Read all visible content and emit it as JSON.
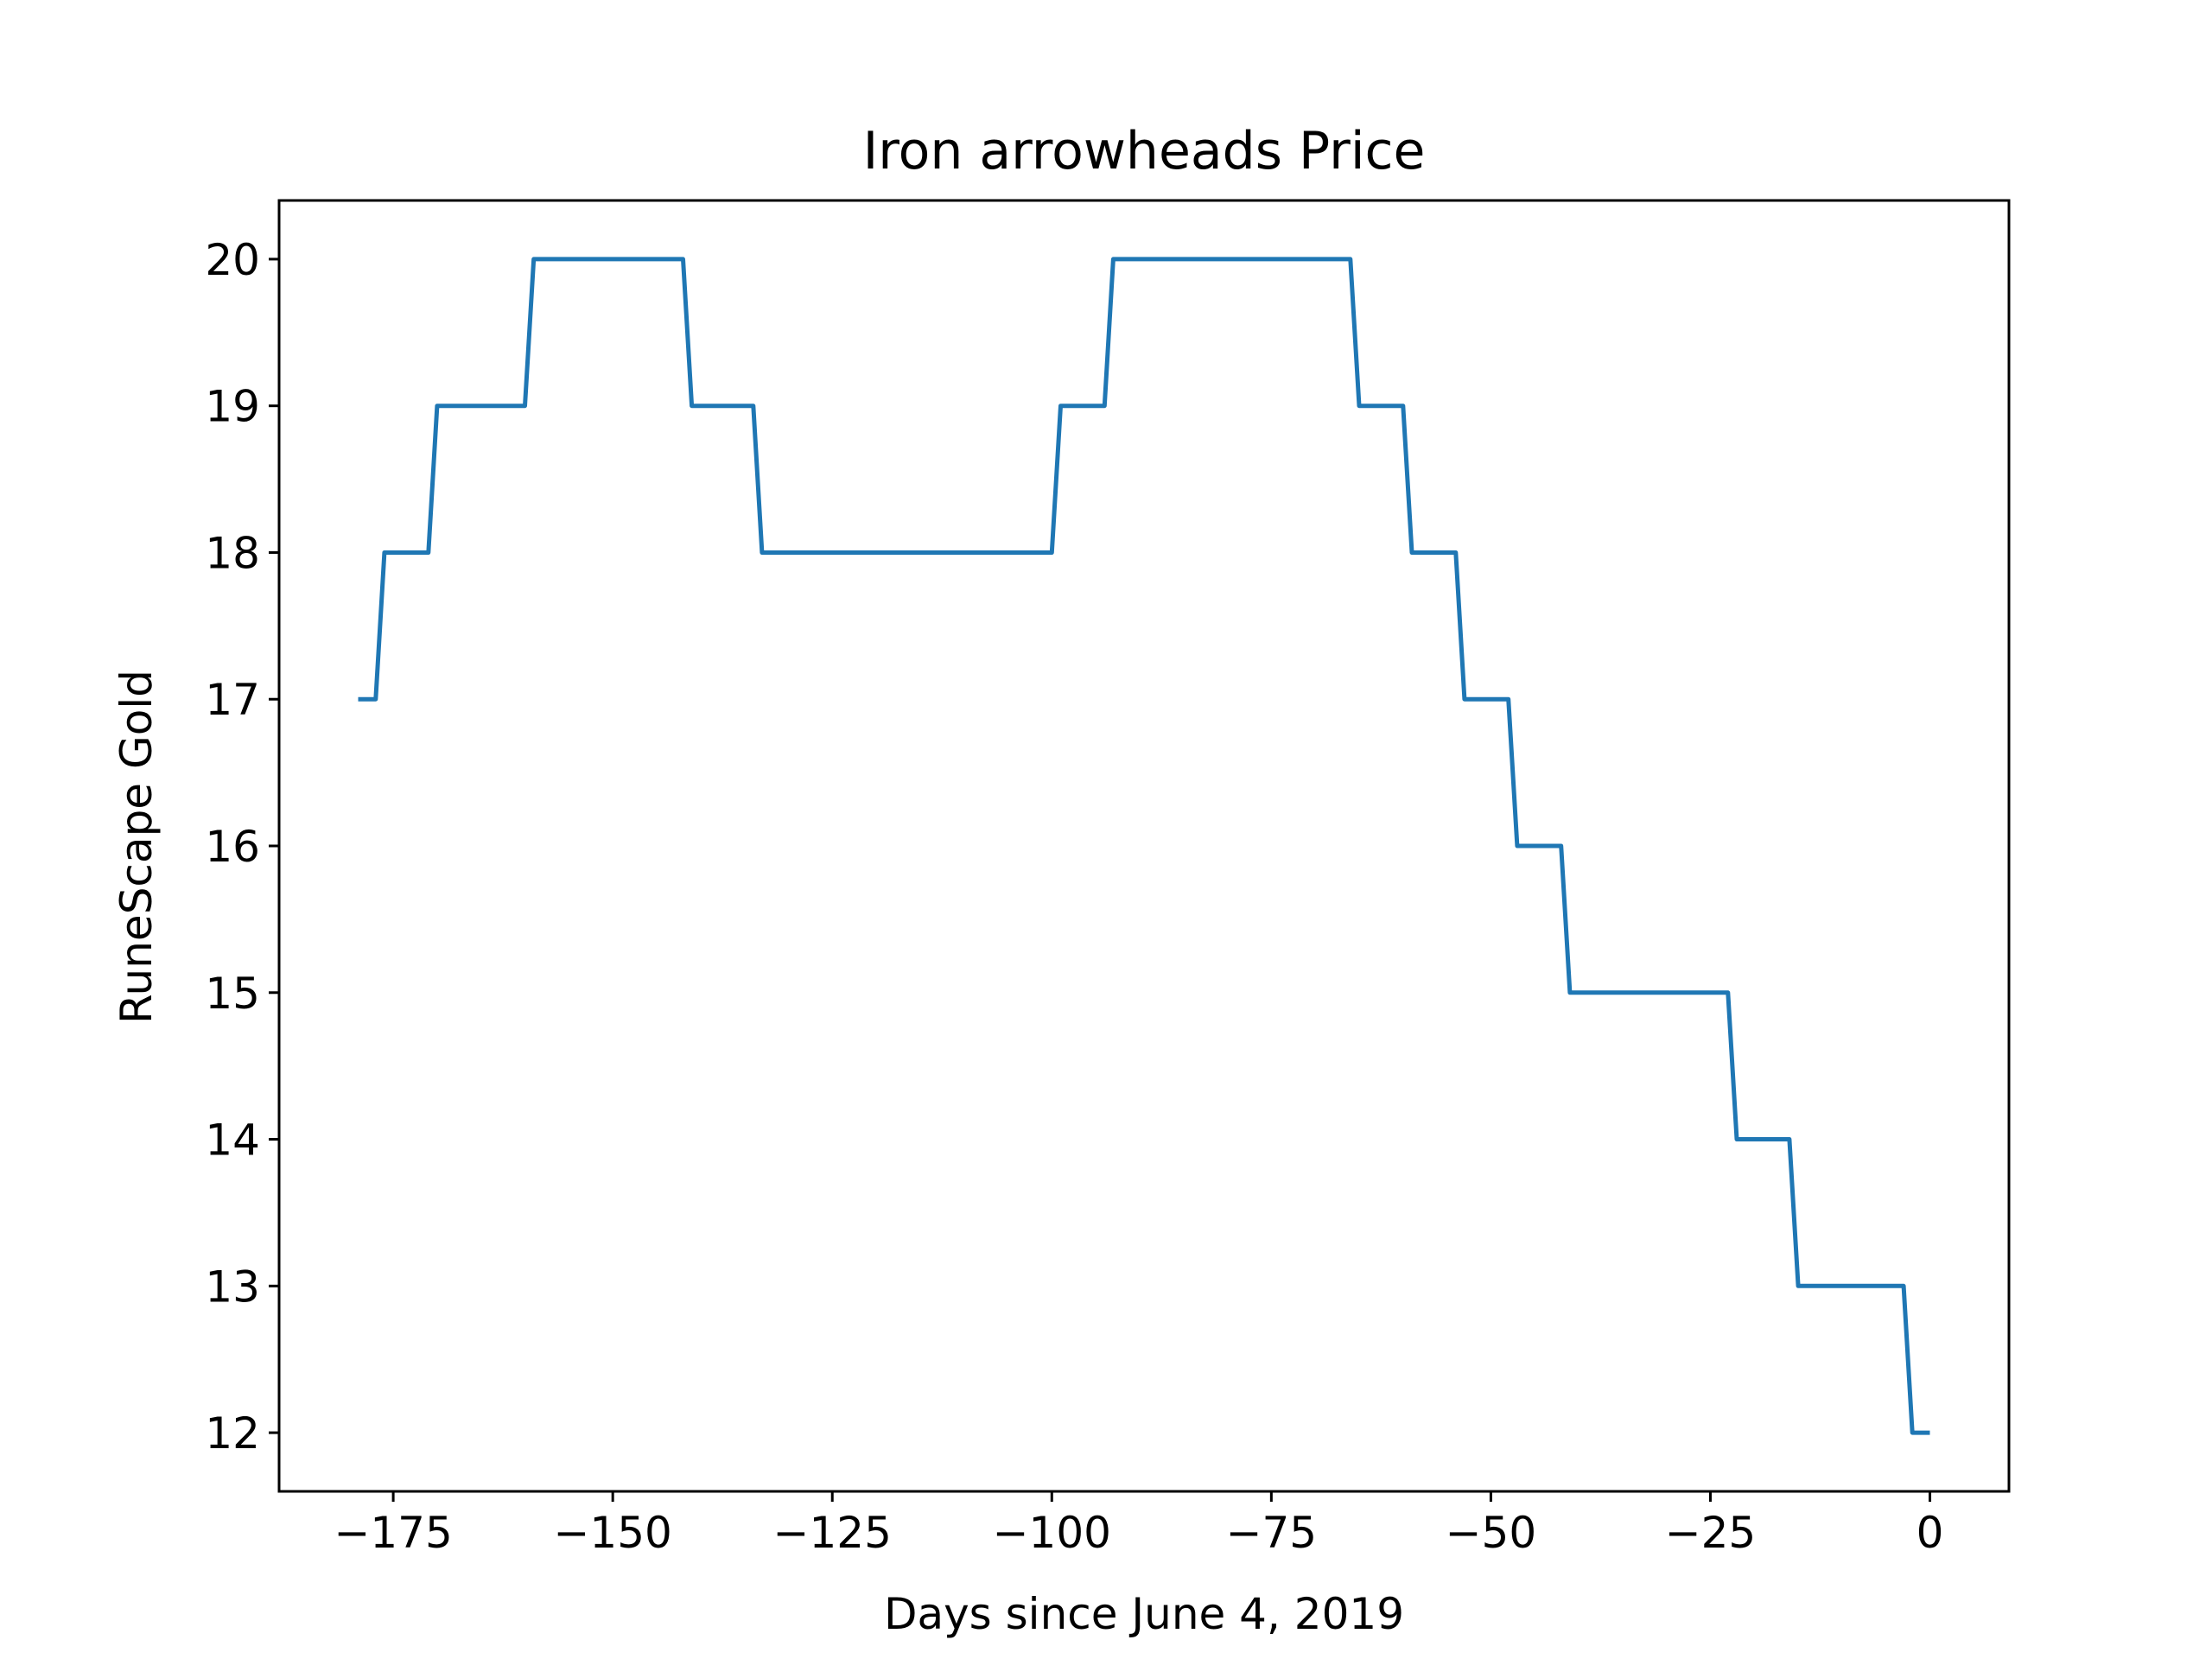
{
  "chart_data": {
    "type": "line",
    "title": "Iron arrowheads Price",
    "xlabel": "Days since June 4, 2019",
    "ylabel": "RuneScape Gold",
    "xlim": [
      -188,
      9
    ],
    "ylim": [
      11.6,
      20.4
    ],
    "xticks": [
      -175,
      -150,
      -125,
      -100,
      -75,
      -50,
      -25,
      0
    ],
    "xtick_labels": [
      "−175",
      "−150",
      "−125",
      "−100",
      "−75",
      "−50",
      "−25",
      "0"
    ],
    "yticks": [
      12,
      13,
      14,
      15,
      16,
      17,
      18,
      19,
      20
    ],
    "ytick_labels": [
      "12",
      "13",
      "14",
      "15",
      "16",
      "17",
      "18",
      "19",
      "20"
    ],
    "grid": false,
    "colors": {
      "line": "#1f77b4",
      "axes": "#000000"
    },
    "series": [
      {
        "x": [
          -179,
          -177,
          -176,
          -171,
          -170,
          -160,
          -159,
          -142,
          -141,
          -134,
          -133,
          -100,
          -99,
          -94,
          -93,
          -66,
          -65,
          -60,
          -59,
          -54,
          -53,
          -48,
          -47,
          -42,
          -41,
          -23,
          -22,
          -16,
          -15,
          -3,
          -2,
          0
        ],
        "y": [
          17,
          17,
          18,
          18,
          19,
          19,
          20,
          20,
          19,
          19,
          18,
          18,
          19,
          19,
          20,
          20,
          19,
          19,
          18,
          18,
          17,
          17,
          16,
          16,
          15,
          15,
          14,
          14,
          13,
          13,
          12,
          12
        ]
      }
    ]
  }
}
